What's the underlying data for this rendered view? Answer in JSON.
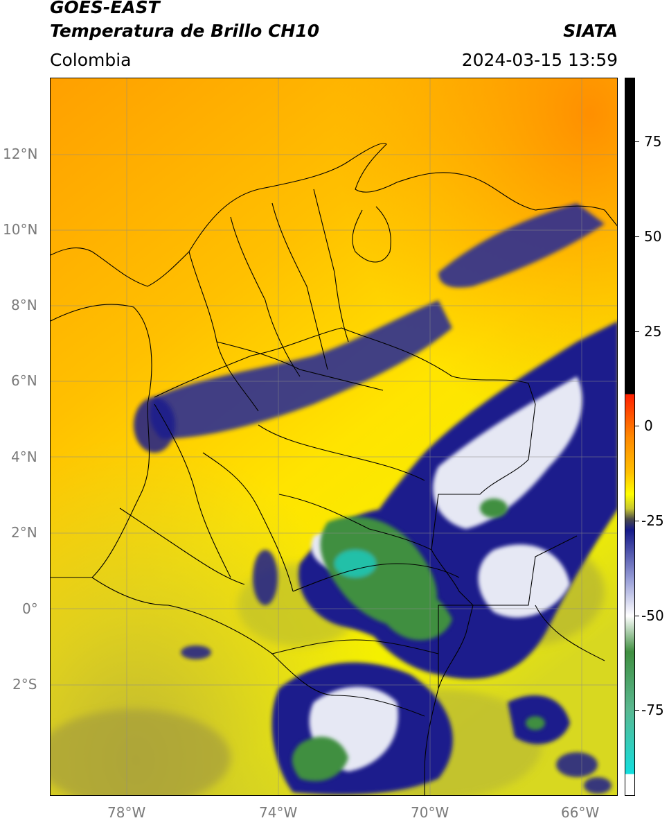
{
  "header": {
    "satellite": "GOES-EAST",
    "product": "Temperatura de Brillo CH10",
    "agency": "SIATA",
    "region": "Colombia",
    "datetime": "2024-03-15 13:59"
  },
  "map": {
    "lat_labels": [
      "12°N",
      "10°N",
      "8°N",
      "6°N",
      "4°N",
      "2°N",
      "0°",
      "2°S"
    ],
    "lon_labels": [
      "78°W",
      "74°W",
      "70°W",
      "66°W"
    ]
  },
  "colorbar": {
    "ticks": [
      "75",
      "50",
      "25",
      "0",
      "-25",
      "-50",
      "-75"
    ],
    "colors": {
      "white": "#ffffff",
      "cyan": "#13dede",
      "green": "#3f8f40",
      "light_green": "#e8f2e0",
      "blue": "#151a8a",
      "grey": "#4a4a4a",
      "olive": "#b5b52c",
      "yellow": "#ffff00",
      "orange": "#ffa500",
      "red": "#ff2000",
      "black": "#000000"
    }
  }
}
